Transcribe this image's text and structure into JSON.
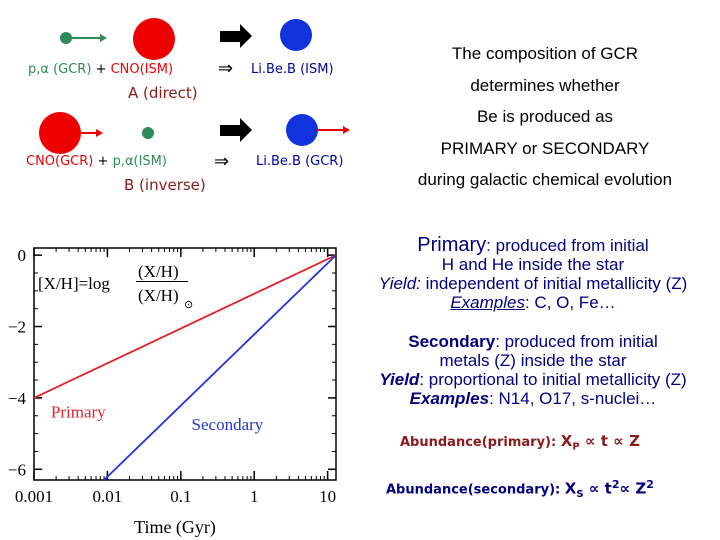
{
  "reactions": {
    "direct": {
      "left_label": "p,α (GCR)",
      "plus": "+",
      "right_label": "CNO(ISM)",
      "arrow": "⇒",
      "product": "Li.Be.B (ISM)",
      "name": "A (direct)"
    },
    "inverse": {
      "left_label": "CNO(GCR)",
      "plus": "+",
      "right_label": "p,α(ISM)",
      "arrow": "⇒",
      "product": "Li.Be.B (GCR)",
      "name": "B (inverse)"
    }
  },
  "header_text": [
    "The composition of GCR",
    "determines whether",
    "Be is produced as",
    "PRIMARY or SECONDARY",
    "during galactic chemical evolution"
  ],
  "primary_block": {
    "term": "Primary",
    "def_line1": ": produced from initial",
    "def_line2": "H and He inside the star",
    "yield_label": "Yield:",
    "yield_text": " independent of initial metallicity (Z)",
    "examples_label": "Examples",
    "examples_text": ": C, O, Fe…"
  },
  "secondary_block": {
    "term": "Secondary",
    "def_line1": ": produced from initial",
    "def_line2": "metals (Z) inside the star",
    "yield_label": "Yield",
    "yield_text": ": proportional to initial metallicity (Z)",
    "examples_label": "Examples",
    "examples_text": ":  N14, O17, s-nuclei…"
  },
  "formulas": {
    "primary_label": "Abundance(primary):",
    "primary_expr": "X",
    "primary_sub": "P",
    "primary_rest": " ∝ t  ∝  Z",
    "secondary_label": "Abundance(secondary):",
    "secondary_expr": "X",
    "secondary_sub": "S",
    "secondary_rest": " ∝ t",
    "secondary_sup1": "2",
    "secondary_rest2": "∝ Z",
    "secondary_sup2": "2"
  },
  "chart_data": {
    "type": "line",
    "formula_left": "[X/H]=log",
    "formula_num": "(X/H)",
    "formula_den": "(X/H)",
    "formula_den_sub": "⊙",
    "xlabel": "Time (Gyr)",
    "ylabel": "",
    "x_scale": "log",
    "xlim": [
      0.001,
      13
    ],
    "ylim": [
      -6.3,
      0.2
    ],
    "x_ticks": [
      0.001,
      0.01,
      0.1,
      1,
      10
    ],
    "x_tick_labels": [
      "0.001",
      "0.01",
      "0.1",
      "1",
      "10"
    ],
    "y_ticks": [
      0,
      -2,
      -4,
      -6
    ],
    "y_tick_labels": [
      "0",
      "−2",
      "−4",
      "−6"
    ],
    "series": [
      {
        "name": "Primary",
        "color": "#e0202a",
        "x": [
          0.001,
          13
        ],
        "y": [
          -4.0,
          0.0
        ]
      },
      {
        "name": "Secondary",
        "color": "#2233dd",
        "x": [
          0.009,
          13
        ],
        "y": [
          -6.3,
          0.0
        ]
      }
    ]
  },
  "colors": {
    "red": "#ee0000",
    "blue": "#1133dd",
    "green": "#2e8b57",
    "maroon": "#8b1a1a",
    "darkblue": "#000080"
  }
}
